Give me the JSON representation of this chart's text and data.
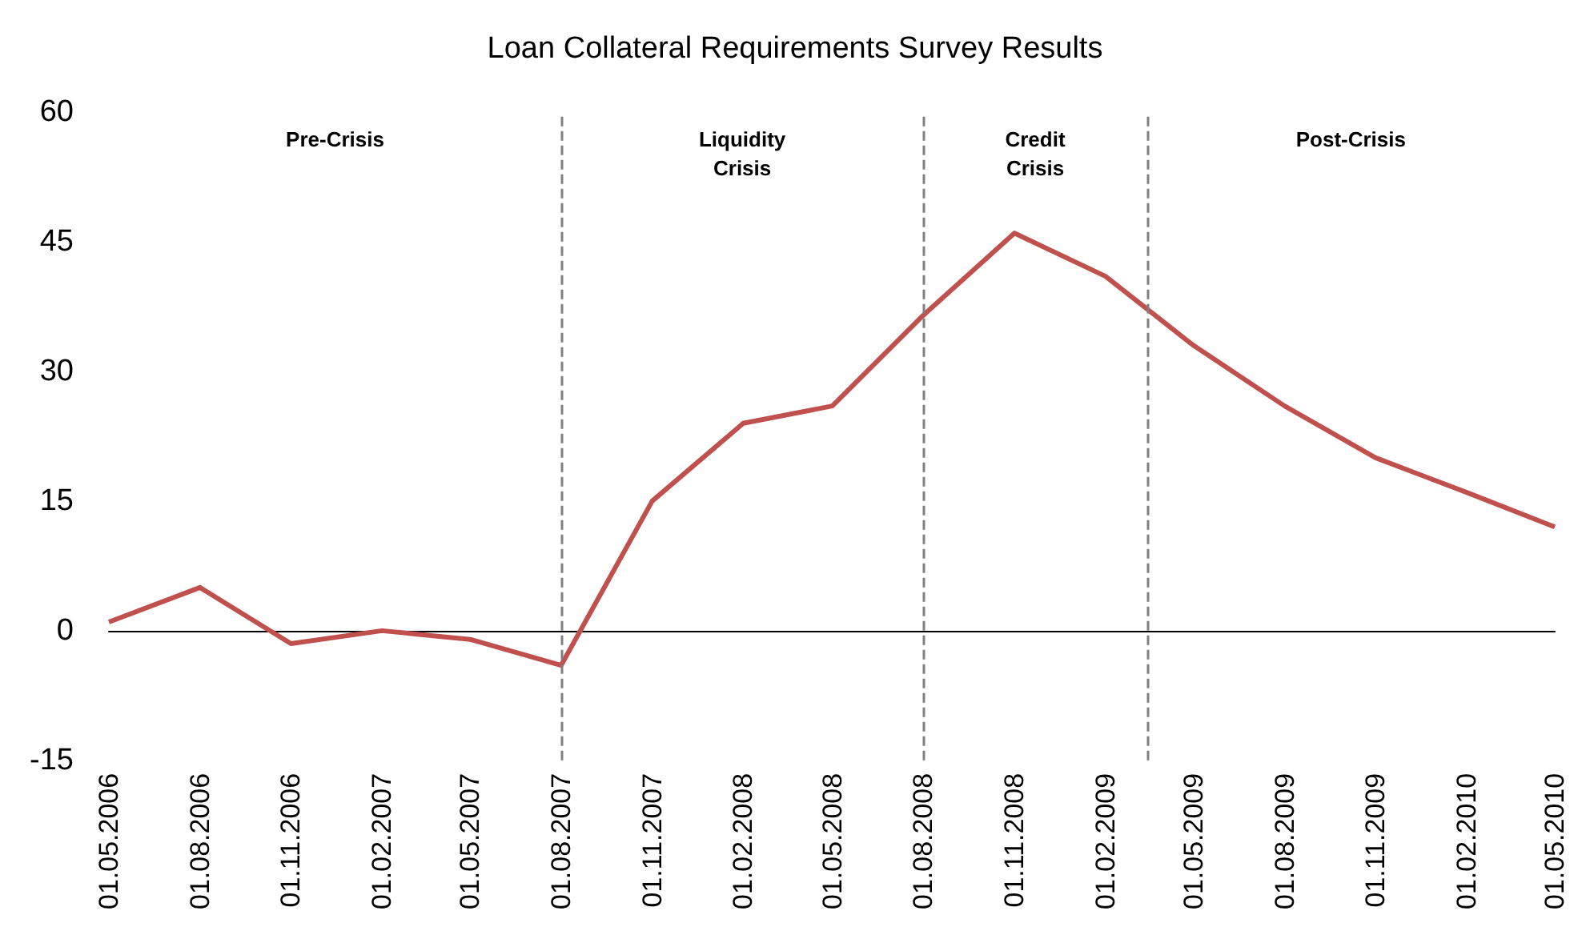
{
  "chart_data": {
    "type": "line",
    "title": "Loan Collateral Requirements Survey Results",
    "x": [
      "2006-05-01",
      "2006-08-01",
      "2006-11-01",
      "2007-02-01",
      "2007-05-01",
      "2007-08-01",
      "2007-11-01",
      "2008-02-01",
      "2008-05-01",
      "2008-08-01",
      "2008-11-01",
      "2009-02-01",
      "2009-05-01",
      "2009-08-01",
      "2009-11-01",
      "2010-02-01",
      "2010-05-01"
    ],
    "series": [
      {
        "color": "#c0504d",
        "values": [
          1,
          5,
          -1.5,
          0,
          -1,
          -4,
          15,
          24,
          26,
          36.5,
          46,
          41,
          33,
          26,
          20,
          16,
          12
        ]
      }
    ],
    "xlim": [
      "2006-05-01",
      "2010-05-01"
    ],
    "xticks": [
      {
        "value": "2006-05-01",
        "label": "01.05.2006"
      },
      {
        "value": "2006-08-01",
        "label": "01.08.2006"
      },
      {
        "value": "2006-11-01",
        "label": "01.11.2006"
      },
      {
        "value": "2007-02-01",
        "label": "01.02.2007"
      },
      {
        "value": "2007-05-01",
        "label": "01.05.2007"
      },
      {
        "value": "2007-08-01",
        "label": "01.08.2007"
      },
      {
        "value": "2007-11-01",
        "label": "01.11.2007"
      },
      {
        "value": "2008-02-01",
        "label": "01.02.2008"
      },
      {
        "value": "2008-05-01",
        "label": "01.05.2008"
      },
      {
        "value": "2008-08-01",
        "label": "01.08.2008"
      },
      {
        "value": "2008-11-01",
        "label": "01.11.2008"
      },
      {
        "value": "2009-02-01",
        "label": "01.02.2009"
      },
      {
        "value": "2009-05-01",
        "label": "01.05.2009"
      },
      {
        "value": "2009-08-01",
        "label": "01.08.2009"
      },
      {
        "value": "2009-11-01",
        "label": "01.11.2009"
      },
      {
        "value": "2010-02-01",
        "label": "01.02.2010"
      },
      {
        "value": "2010-05-01",
        "label": "01.05.2010"
      }
    ],
    "ylim": [
      -15,
      60
    ],
    "yticks": [
      -15,
      0,
      15,
      30,
      45,
      60
    ],
    "ref_lines": [
      {
        "axis": "x",
        "value": "2007-08-01",
        "color": "#808080",
        "line_style": "dashed"
      },
      {
        "axis": "x",
        "value": "2008-08-01",
        "color": "#808080",
        "line_style": "dashed"
      },
      {
        "axis": "x",
        "value": "2009-03-15",
        "color": "#808080",
        "line_style": "dashed"
      }
    ],
    "annotations": [
      "Pre-Crisis",
      "Liquidity\nCrisis",
      "Credit\nCrisis",
      "Post-Crisis"
    ],
    "grid": false,
    "marker": "none",
    "line_style": "solid"
  }
}
